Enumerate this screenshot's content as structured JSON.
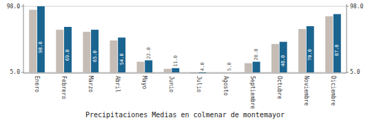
{
  "chart_data": {
    "type": "bar",
    "title": "Precipitaciones Medias en colmenar de montemayor",
    "categories": [
      "Enero",
      "Febrero",
      "Marzo",
      "Abril",
      "Mayo",
      "Junio",
      "Julio",
      "Agosto",
      "Septiembre",
      "Octubre",
      "Noviembre",
      "Diciembre"
    ],
    "series": [
      {
        "color": "#c5bdb5",
        "values": [
          93.0,
          65.0,
          62.0,
          50.0,
          20.0,
          10.0,
          4.0,
          5.0,
          18.0,
          45.0,
          66.0,
          84.0
        ]
      },
      {
        "color": "#1a6490",
        "values": [
          98.0,
          69.0,
          65.0,
          54.0,
          22.0,
          11.0,
          4.0,
          5.0,
          20.0,
          48.0,
          70.0,
          87.0
        ],
        "data_labels": true,
        "value_labels": [
          "98.0",
          "69.0",
          "65.0",
          "54.0",
          "22.0",
          "11.0",
          "4.0",
          "5.0",
          "20.0",
          "48.0",
          "70.0",
          "87.0"
        ]
      }
    ],
    "ylim": [
      4,
      101
    ],
    "yticks": [
      {
        "value": 5,
        "label": "5.0"
      },
      {
        "value": 98,
        "label": "98.0"
      }
    ],
    "y2lim": [
      4,
      101
    ],
    "y2ticks": [
      {
        "value": 5,
        "label": "5.0"
      },
      {
        "value": 98,
        "label": "98.0"
      }
    ],
    "grid": true
  }
}
